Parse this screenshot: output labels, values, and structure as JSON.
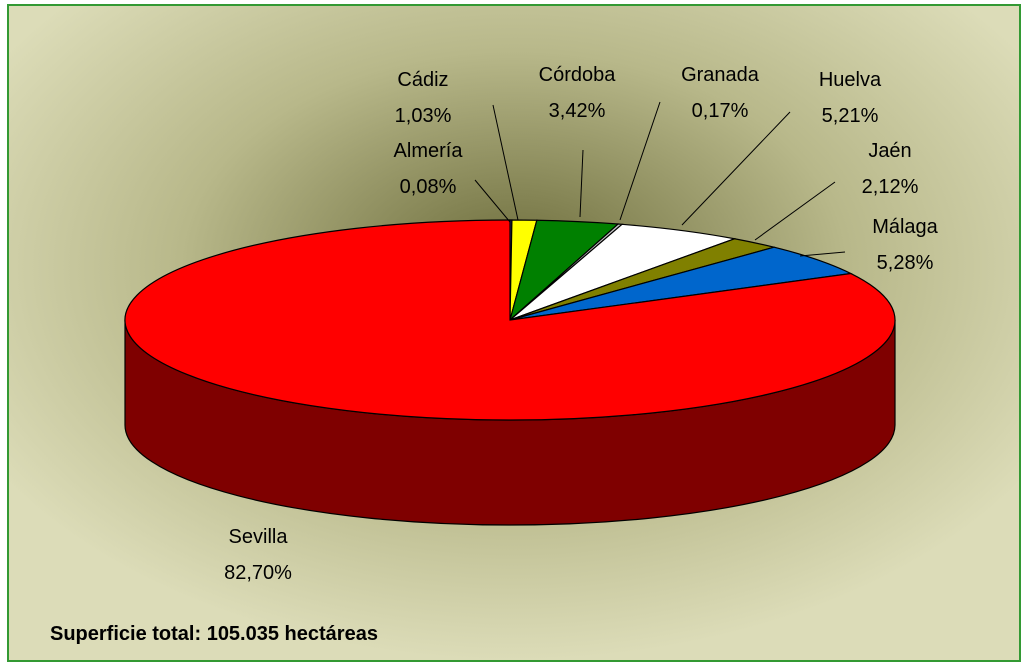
{
  "chart_data": {
    "type": "pie3d",
    "categories": [
      "Almería",
      "Cádiz",
      "Córdoba",
      "Granada",
      "Huelva",
      "Jaén",
      "Málaga",
      "Sevilla"
    ],
    "values": [
      0.08,
      1.03,
      3.42,
      0.17,
      5.21,
      2.12,
      5.28,
      82.7
    ],
    "value_labels": [
      "0,08%",
      "1,03%",
      "3,42%",
      "0,17%",
      "5,21%",
      "2,12%",
      "5,28%",
      "82,70%"
    ],
    "colors": [
      "#333399",
      "#ffff00",
      "#008000",
      "#c0c0c0",
      "#ffffff",
      "#808000",
      "#0066cc",
      "#ff0000"
    ],
    "annotation": "Superficie total: 105.035 hectáreas"
  }
}
